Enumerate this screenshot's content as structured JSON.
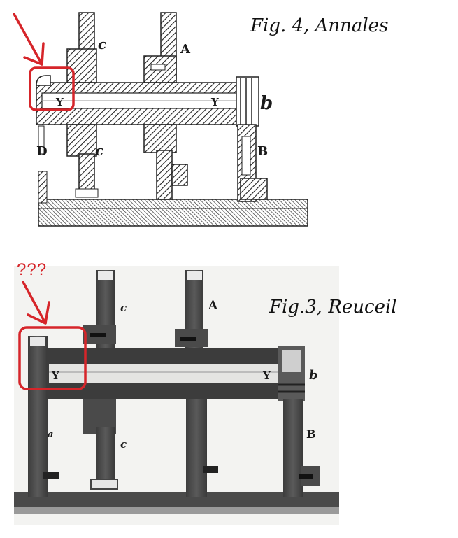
{
  "figure_top": {
    "caption": "Fig. 4, Annales",
    "labels": {
      "c_upper": "c",
      "A": "A",
      "Y_left": "Y",
      "Y_right": "Y",
      "b": "b",
      "D": "D",
      "c_lower": "c",
      "B": "B"
    }
  },
  "figure_bottom": {
    "caption": "Fig.3, Reuceil",
    "labels": {
      "c_upper": "c",
      "A": "A",
      "Y_left": "Y",
      "Y_right": "Y",
      "b": "b",
      "a": "a",
      "c_lower": "c",
      "B": "B"
    }
  },
  "annotation": {
    "question": "???",
    "color": "#d6252a"
  }
}
